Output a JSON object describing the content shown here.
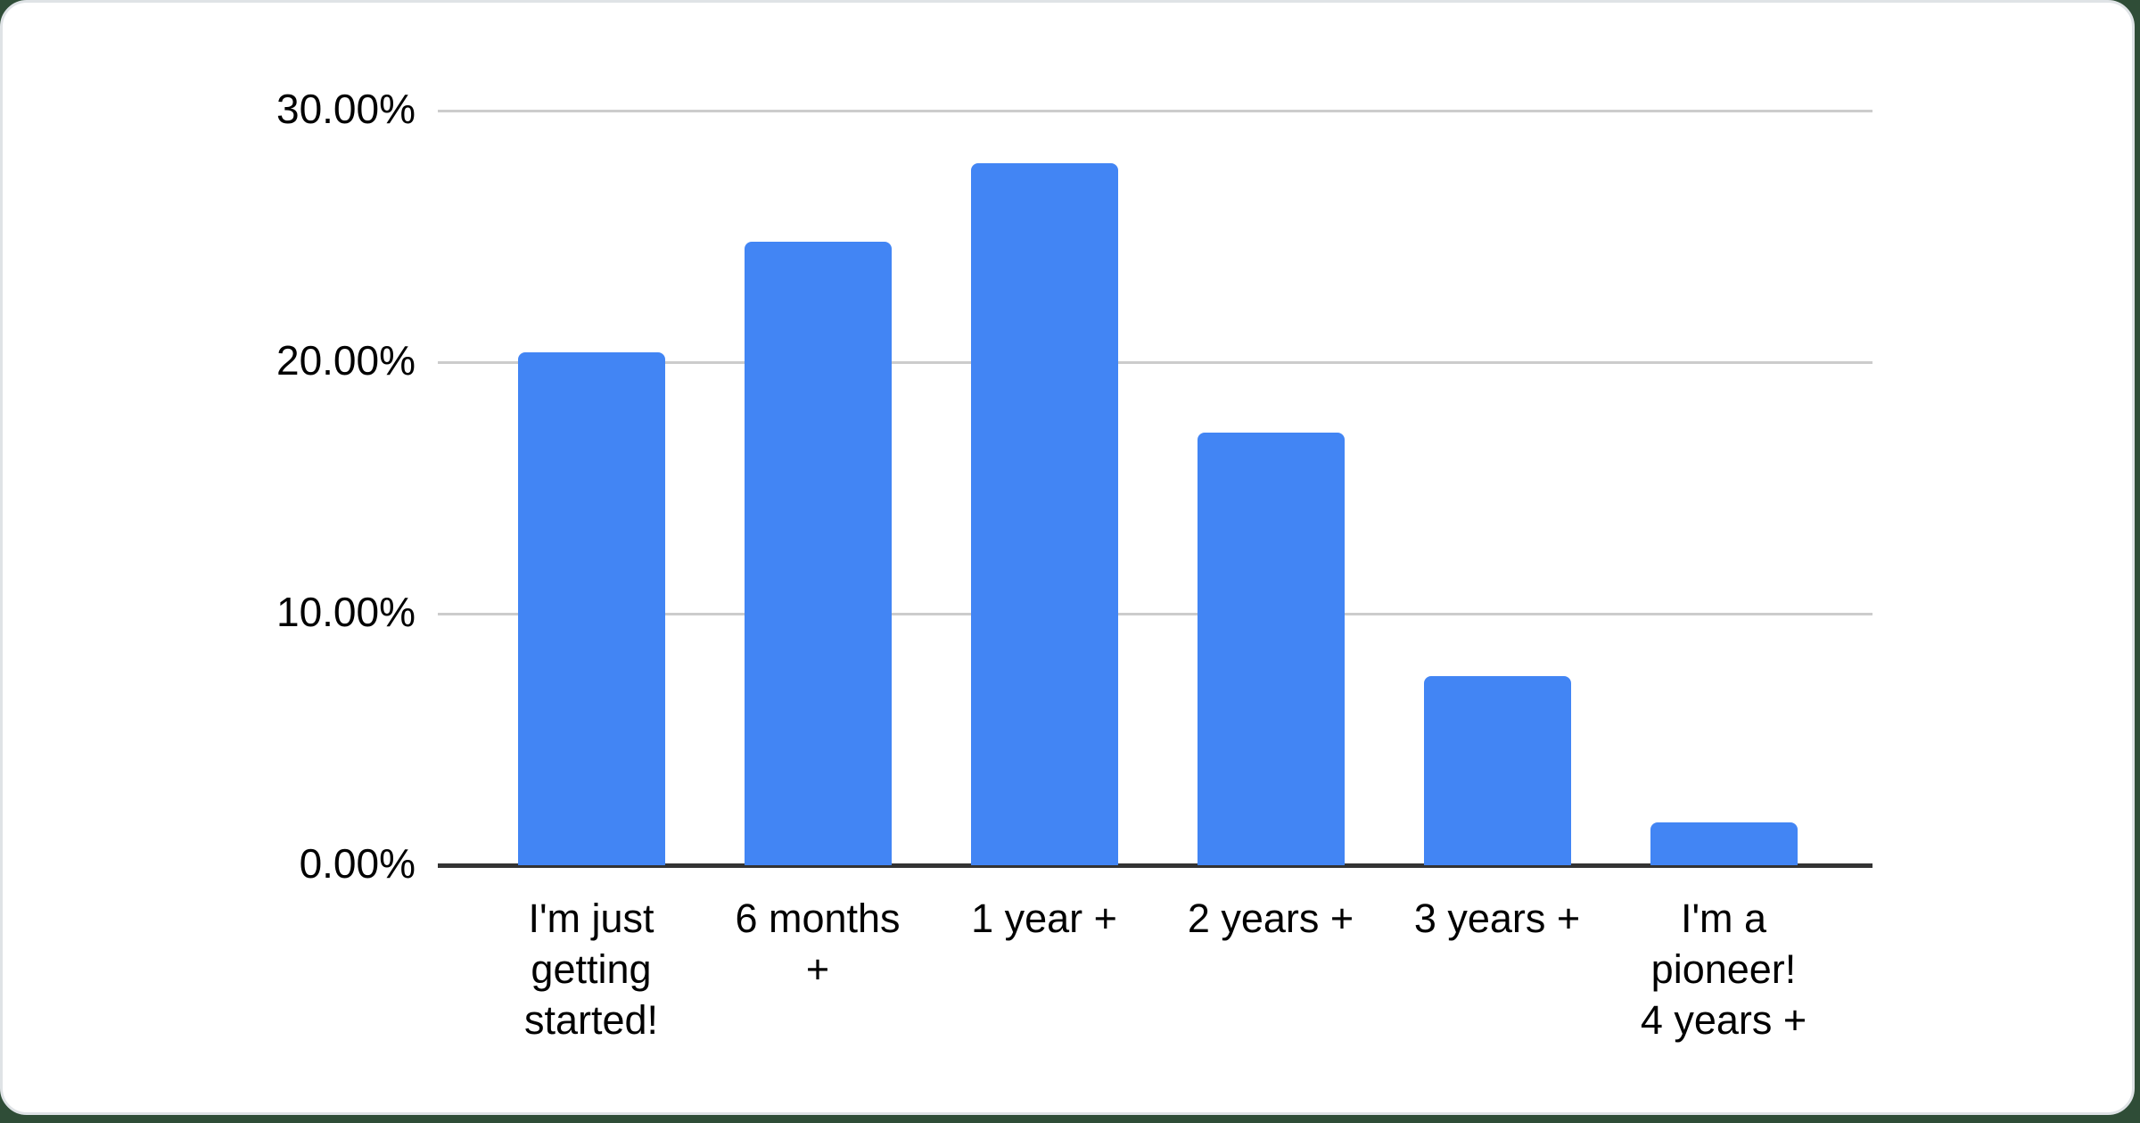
{
  "chart_data": {
    "type": "bar",
    "title": "",
    "categories": [
      "I'm just getting started!",
      "6 months +",
      "1 year +",
      "2 years +",
      "3 years +",
      "I'm a pioneer! 4 years +"
    ],
    "values": [
      20.4,
      24.8,
      27.9,
      17.2,
      7.5,
      1.7
    ],
    "tick_label_lines": [
      [
        "I'm just",
        "getting",
        "started!"
      ],
      [
        "6 months",
        "+"
      ],
      [
        "1 year +"
      ],
      [
        "2 years +"
      ],
      [
        "3 years +"
      ],
      [
        "I'm a",
        "pioneer!",
        "4 years +"
      ]
    ],
    "y_ticks": [
      {
        "value": 0,
        "label": "0.00%"
      },
      {
        "value": 10,
        "label": "10.00%"
      },
      {
        "value": 20,
        "label": "20.00%"
      },
      {
        "value": 30,
        "label": "30.00%"
      }
    ],
    "xlabel": "",
    "ylabel": "",
    "ylim": [
      0,
      30
    ],
    "grid": true,
    "legend": "none",
    "colors": {
      "bar": "#4285f4",
      "gridline": "#cccccc",
      "axis_line": "#333333",
      "label_text": "#000000",
      "card_background": "#ffffff",
      "card_border": "#dfe3e6",
      "page_background": "#2f4d37"
    }
  }
}
